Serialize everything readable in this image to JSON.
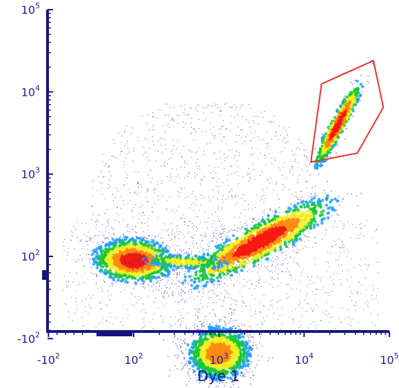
{
  "chart_data": {
    "type": "scatter",
    "title": "",
    "xlabel": "Dye 1",
    "ylabel": "",
    "x_scale": "biexponential",
    "y_scale": "biexponential",
    "density_colormap": [
      "#2a2ab8",
      "#1fa0ff",
      "#18c838",
      "#f2ee1e",
      "#ff8a10",
      "#f41a10"
    ],
    "x_ticks": [
      {
        "base": "-10",
        "exp": "2",
        "value": -100
      },
      {
        "base": "10",
        "exp": "2",
        "value": 100
      },
      {
        "base": "10",
        "exp": "3",
        "value": 1000
      },
      {
        "base": "10",
        "exp": "4",
        "value": 10000
      },
      {
        "base": "10",
        "exp": "5",
        "value": 100000
      }
    ],
    "y_ticks": [
      {
        "base": "-10",
        "exp": "2",
        "value": -100
      },
      {
        "base": "10",
        "exp": "2",
        "value": 100
      },
      {
        "base": "10",
        "exp": "3",
        "value": 1000
      },
      {
        "base": "10",
        "exp": "4",
        "value": 10000
      },
      {
        "base": "10",
        "exp": "5",
        "value": 100000
      }
    ],
    "populations": [
      {
        "label": "left cluster",
        "x": 100,
        "y": 90,
        "spread": "tight",
        "peak_color": "red"
      },
      {
        "label": "lower cluster",
        "x": 1000,
        "y": -150,
        "spread": "broad",
        "peak_color": "yellow"
      },
      {
        "label": "diagonal band",
        "x": 3000,
        "y": 150,
        "spread": "elongated",
        "peak_color": "orange"
      },
      {
        "label": "upper-right cluster",
        "x": 25000,
        "y": 4000,
        "spread": "elongated",
        "peak_color": "red"
      }
    ],
    "gates": [
      {
        "shape": "polygon",
        "color": "#e8302a",
        "vertices": [
          [
            12000,
            1400
          ],
          [
            16000,
            12500
          ],
          [
            65000,
            24000
          ],
          [
            85000,
            6500
          ],
          [
            42000,
            1800
          ]
        ]
      }
    ]
  }
}
